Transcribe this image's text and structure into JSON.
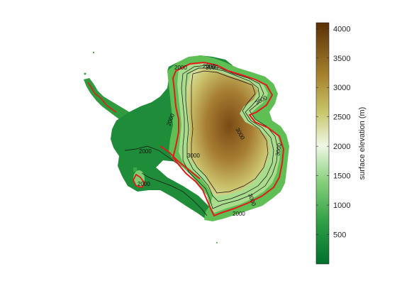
{
  "colorbar": {
    "label": "surface elevation (m)",
    "range": [
      0,
      4100
    ],
    "ticks": [
      500,
      1000,
      1500,
      2000,
      2500,
      3000,
      3500,
      4000
    ],
    "stops": [
      {
        "value": 0,
        "color": "#00702e"
      },
      {
        "value": 700,
        "color": "#2e9e44"
      },
      {
        "value": 1400,
        "color": "#86d07a"
      },
      {
        "value": 2000,
        "color": "#eef7e4"
      },
      {
        "value": 2600,
        "color": "#c8c66a"
      },
      {
        "value": 3200,
        "color": "#a8822e"
      },
      {
        "value": 4100,
        "color": "#5a3006"
      }
    ]
  },
  "colors": {
    "highlight_contour": "#e31a1c",
    "contour": "#111111",
    "background": "#ffffff"
  },
  "contour_labels": [
    "2000",
    "2000",
    "2000",
    "2000",
    "2000",
    "2000",
    "2000",
    "3000",
    "3000",
    "3000",
    "3000",
    "3000"
  ]
}
